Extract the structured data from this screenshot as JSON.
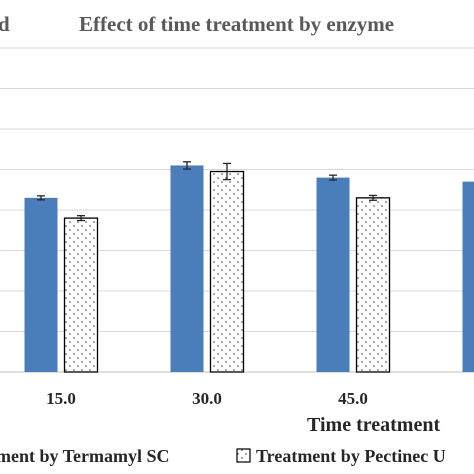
{
  "chart_data": {
    "type": "bar",
    "title_left": "d",
    "title": "Effect of  time treatment by enzyme",
    "xlabel": "Time treatment",
    "categories": [
      "15.0",
      "30.0",
      "45.0",
      ""
    ],
    "series": [
      {
        "name": "ment by Termamyl SC",
        "color": "#4a7ebb",
        "pattern": "solid",
        "values": [
          4.3,
          5.1,
          4.8,
          4.7
        ],
        "errors": [
          0.05,
          0.09,
          0.06,
          0.06
        ]
      },
      {
        "name": "Treatment by Pectinec U",
        "color": "#ffffff",
        "pattern": "dotted",
        "values": [
          3.8,
          4.95,
          4.3,
          null
        ],
        "errors": [
          0.06,
          0.2,
          0.06,
          null
        ]
      }
    ],
    "ylim": [
      0,
      8
    ],
    "grid": true,
    "legend_position": "bottom"
  }
}
